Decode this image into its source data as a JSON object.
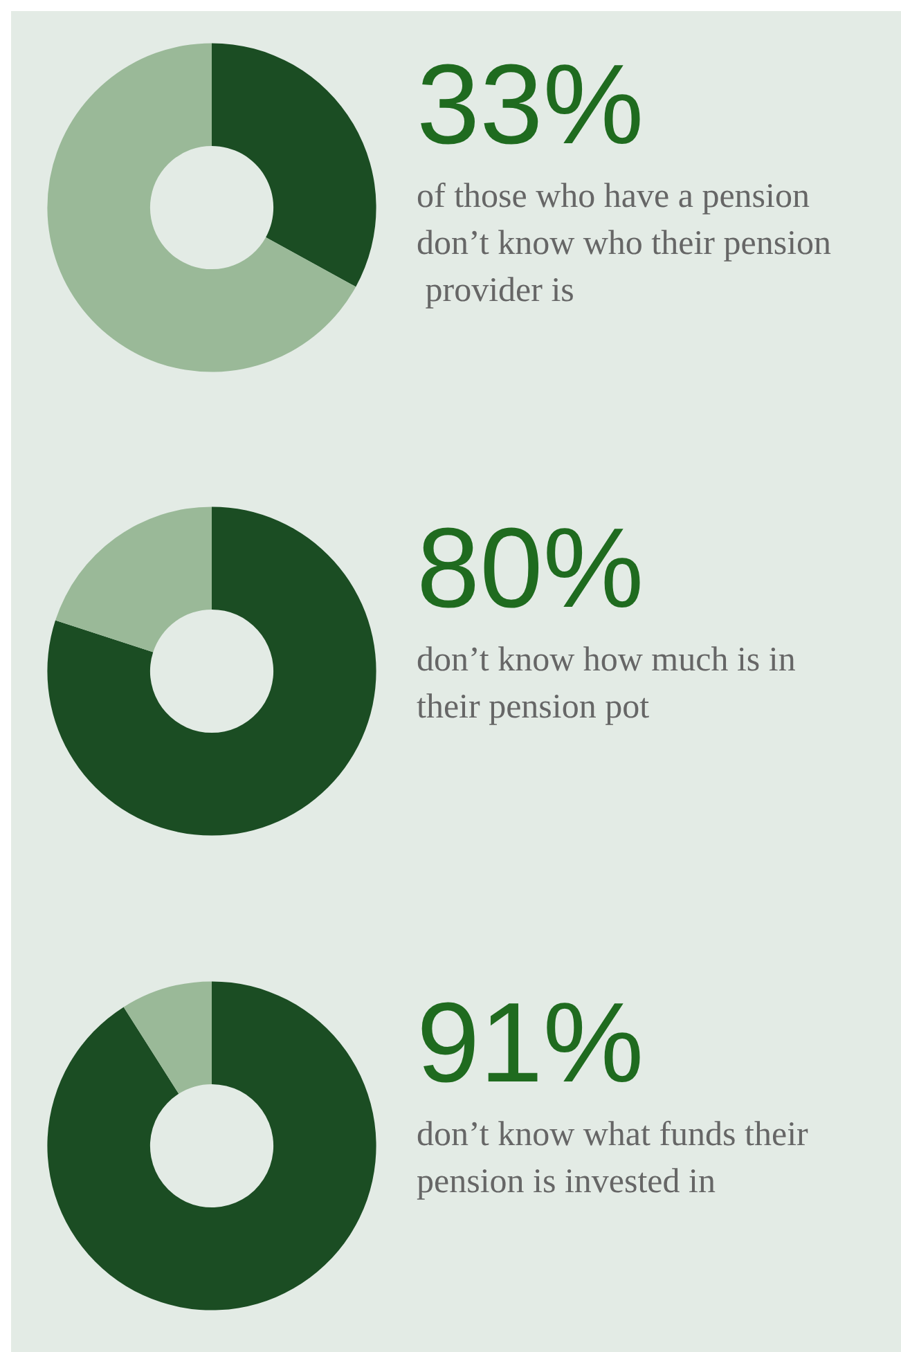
{
  "chart_data": [
    {
      "type": "donut",
      "title": "of those who have a pension don’t know who their pension provider is",
      "categories": [
        null,
        null
      ],
      "values": [
        33,
        67
      ],
      "colors": [
        "#1b4d23",
        "#9ab998"
      ],
      "value_labels": [
        "33%",
        null
      ]
    },
    {
      "type": "donut",
      "title": "don’t know how much is in their pension pot",
      "categories": [
        null,
        null
      ],
      "values": [
        80,
        20
      ],
      "colors": [
        "#1b4d23",
        "#9ab998"
      ],
      "value_labels": [
        "80%",
        null
      ]
    },
    {
      "type": "donut",
      "title": "don’t know what funds their pension is invested in",
      "categories": [
        null,
        null
      ],
      "values": [
        91,
        9
      ],
      "colors": [
        "#1b4d23",
        "#9ab998"
      ],
      "value_labels": [
        "91%",
        null
      ]
    }
  ]
}
